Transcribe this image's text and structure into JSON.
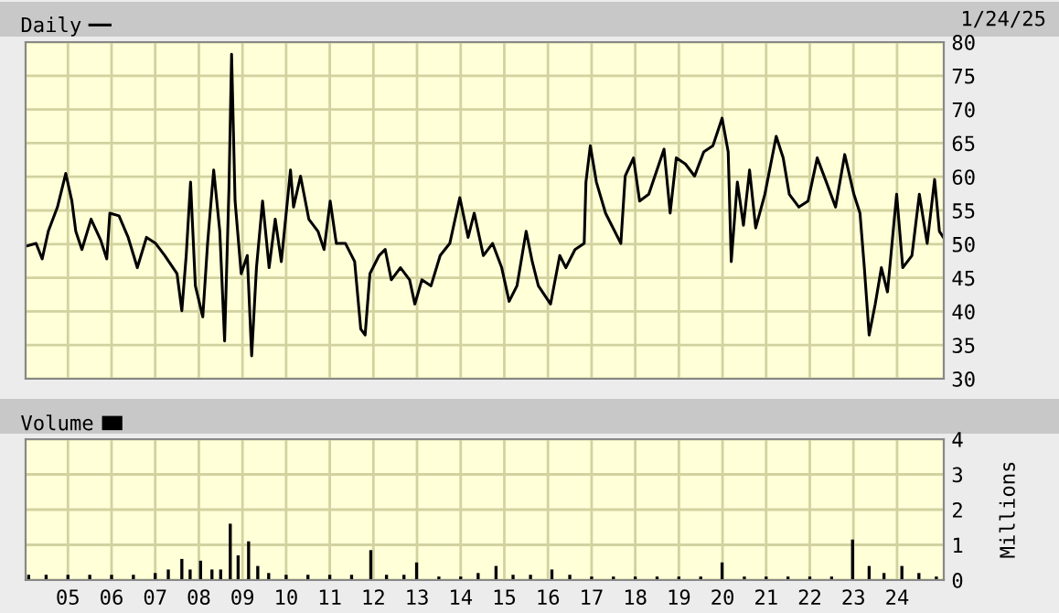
{
  "chart_data": [
    {
      "type": "line",
      "legend": "top left",
      "grid": true,
      "tick_labels": "y",
      "annotations": [
        "1/24/25"
      ],
      "xlim": [
        2004.03,
        2025.07
      ],
      "xticks": [
        {
          "value": 2005,
          "label": null
        },
        {
          "value": 2006,
          "label": null
        },
        {
          "value": 2007,
          "label": null
        },
        {
          "value": 2008,
          "label": null
        },
        {
          "value": 2009,
          "label": null
        },
        {
          "value": 2010,
          "label": null
        },
        {
          "value": 2011,
          "label": null
        },
        {
          "value": 2012,
          "label": null
        },
        {
          "value": 2013,
          "label": null
        },
        {
          "value": 2014,
          "label": null
        },
        {
          "value": 2015,
          "label": null
        },
        {
          "value": 2016,
          "label": null
        },
        {
          "value": 2017,
          "label": null
        },
        {
          "value": 2018,
          "label": null
        },
        {
          "value": 2019,
          "label": null
        },
        {
          "value": 2020,
          "label": null
        },
        {
          "value": 2021,
          "label": null
        },
        {
          "value": 2022,
          "label": null
        },
        {
          "value": 2023,
          "label": null
        },
        {
          "value": 2024,
          "label": null
        }
      ],
      "ylim": [
        30,
        80
      ],
      "yticks": [
        30,
        35,
        40,
        45,
        50,
        55,
        60,
        65,
        70,
        75,
        80
      ],
      "series": [
        {
          "name": "Daily",
          "color": "#000000",
          "x": [
            2004.05,
            2004.27,
            2004.41,
            2004.55,
            2004.76,
            2004.95,
            2005.09,
            2005.18,
            2005.32,
            2005.53,
            2005.75,
            2005.89,
            2005.96,
            2006.17,
            2006.38,
            2006.59,
            2006.8,
            2007.01,
            2007.22,
            2007.5,
            2007.61,
            2007.71,
            2007.81,
            2007.92,
            2008.09,
            2008.2,
            2008.34,
            2008.48,
            2008.59,
            2008.69,
            2008.75,
            2008.83,
            2008.97,
            2009.11,
            2009.21,
            2009.32,
            2009.46,
            2009.61,
            2009.75,
            2009.89,
            2010.1,
            2010.17,
            2010.33,
            2010.52,
            2010.73,
            2010.87,
            2011.01,
            2011.15,
            2011.36,
            2011.57,
            2011.71,
            2011.81,
            2011.92,
            2012.13,
            2012.27,
            2012.41,
            2012.62,
            2012.83,
            2012.95,
            2013.11,
            2013.32,
            2013.53,
            2013.75,
            2013.98,
            2014.17,
            2014.31,
            2014.52,
            2014.73,
            2014.94,
            2015.11,
            2015.29,
            2015.5,
            2015.64,
            2015.78,
            2016.06,
            2016.27,
            2016.41,
            2016.62,
            2016.83,
            2016.87,
            2016.97,
            2017.11,
            2017.32,
            2017.46,
            2017.67,
            2017.77,
            2017.96,
            2018.1,
            2018.31,
            2018.45,
            2018.66,
            2018.8,
            2018.94,
            2019.15,
            2019.36,
            2019.57,
            2019.78,
            2019.99,
            2020.13,
            2020.2,
            2020.34,
            2020.48,
            2020.62,
            2020.76,
            2020.97,
            2021.23,
            2021.39,
            2021.53,
            2021.75,
            2021.96,
            2022.17,
            2022.38,
            2022.59,
            2022.8,
            2023.01,
            2023.15,
            2023.25,
            2023.36,
            2023.5,
            2023.64,
            2023.78,
            2023.99,
            2024.13,
            2024.34,
            2024.51,
            2024.69,
            2024.86,
            2024.97,
            2025.06
          ],
          "values": [
            49.7,
            50.1,
            47.8,
            51.9,
            55.5,
            60.5,
            56.4,
            51.9,
            49.2,
            53.7,
            50.6,
            47.8,
            54.6,
            54.2,
            51.0,
            46.5,
            51.0,
            50.1,
            48.3,
            45.6,
            40.1,
            48.3,
            59.2,
            43.8,
            39.2,
            50.1,
            61.0,
            51.9,
            35.6,
            58.3,
            78.2,
            56.4,
            45.6,
            48.3,
            33.4,
            46.5,
            56.4,
            46.5,
            53.7,
            47.4,
            61.0,
            55.5,
            60.1,
            53.7,
            51.9,
            49.2,
            56.4,
            50.1,
            50.1,
            47.4,
            37.4,
            36.5,
            45.6,
            48.3,
            49.2,
            44.7,
            46.5,
            44.7,
            41.1,
            44.7,
            43.8,
            48.3,
            50.1,
            56.9,
            51.0,
            54.6,
            48.3,
            50.1,
            46.5,
            41.5,
            43.8,
            51.9,
            47.4,
            43.8,
            41.1,
            48.3,
            46.5,
            49.2,
            50.1,
            59.2,
            64.6,
            59.2,
            54.6,
            52.8,
            50.1,
            60.1,
            62.8,
            56.4,
            57.4,
            60.1,
            64.1,
            54.6,
            62.8,
            61.9,
            60.1,
            63.7,
            64.6,
            68.7,
            63.7,
            47.4,
            59.2,
            52.8,
            61.0,
            52.4,
            57.4,
            66.0,
            62.8,
            57.4,
            55.5,
            56.4,
            62.8,
            59.2,
            55.5,
            63.3,
            57.4,
            54.6,
            46.5,
            36.5,
            41.1,
            46.5,
            42.9,
            57.4,
            46.5,
            48.3,
            57.4,
            50.1,
            59.6,
            51.9,
            51.0
          ]
        }
      ]
    },
    {
      "type": "bar",
      "legend": "top left",
      "grid": true,
      "y2label": "Millions",
      "xlim": [
        2004.03,
        2025.07
      ],
      "xticks": [
        {
          "value": 2005,
          "label": "05"
        },
        {
          "value": 2006,
          "label": "06"
        },
        {
          "value": 2007,
          "label": "07"
        },
        {
          "value": 2008,
          "label": "08"
        },
        {
          "value": 2009,
          "label": "09"
        },
        {
          "value": 2010,
          "label": "10"
        },
        {
          "value": 2011,
          "label": "11"
        },
        {
          "value": 2012,
          "label": "12"
        },
        {
          "value": 2013,
          "label": "13"
        },
        {
          "value": 2014,
          "label": "14"
        },
        {
          "value": 2015,
          "label": "15"
        },
        {
          "value": 2016,
          "label": "16"
        },
        {
          "value": 2017,
          "label": "17"
        },
        {
          "value": 2018,
          "label": "18"
        },
        {
          "value": 2019,
          "label": "19"
        },
        {
          "value": 2020,
          "label": "20"
        },
        {
          "value": 2021,
          "label": "21"
        },
        {
          "value": 2022,
          "label": "22"
        },
        {
          "value": 2023,
          "label": "23"
        },
        {
          "value": 2024,
          "label": "24"
        }
      ],
      "ylim": [
        0,
        4
      ],
      "yticks": [
        0,
        1,
        2,
        3,
        4
      ],
      "series": [
        {
          "name": "Volume",
          "color": "#000000",
          "x": [
            2004.1,
            2004.5,
            2005.0,
            2005.5,
            2006.0,
            2006.5,
            2007.0,
            2007.3,
            2007.61,
            2007.8,
            2008.04,
            2008.3,
            2008.5,
            2008.72,
            2008.9,
            2009.14,
            2009.35,
            2009.6,
            2010.0,
            2010.5,
            2011.0,
            2011.5,
            2011.94,
            2012.3,
            2012.7,
            2012.99,
            2013.5,
            2014.0,
            2014.4,
            2014.81,
            2015.2,
            2015.6,
            2016.09,
            2016.5,
            2017.0,
            2017.5,
            2018.0,
            2018.5,
            2019.0,
            2019.5,
            2019.99,
            2020.5,
            2021.0,
            2021.5,
            2022.0,
            2022.5,
            2022.98,
            2023.36,
            2023.7,
            2024.11,
            2024.5,
            2024.9
          ],
          "values": [
            0.15,
            0.15,
            0.15,
            0.15,
            0.15,
            0.15,
            0.2,
            0.3,
            0.6,
            0.3,
            0.55,
            0.3,
            0.3,
            1.6,
            0.7,
            1.1,
            0.4,
            0.2,
            0.15,
            0.15,
            0.15,
            0.15,
            0.85,
            0.15,
            0.15,
            0.5,
            0.1,
            0.1,
            0.2,
            0.4,
            0.15,
            0.15,
            0.3,
            0.15,
            0.1,
            0.1,
            0.1,
            0.1,
            0.1,
            0.1,
            0.5,
            0.1,
            0.1,
            0.1,
            0.1,
            0.1,
            1.15,
            0.4,
            0.2,
            0.4,
            0.2,
            0.1
          ]
        }
      ]
    }
  ]
}
